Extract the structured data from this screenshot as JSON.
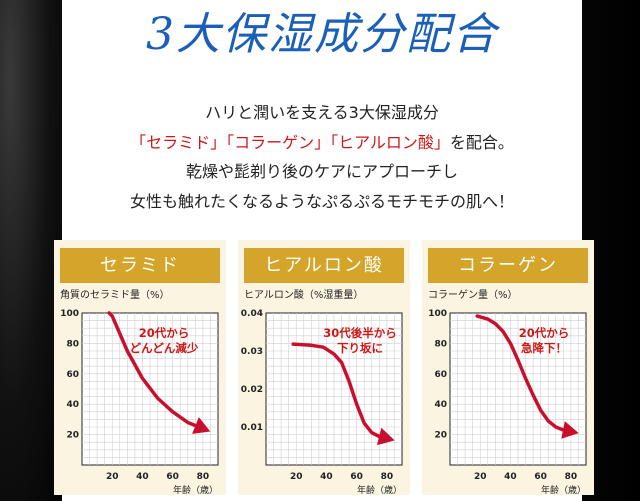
{
  "title": "3大保湿成分配合",
  "intro": {
    "line1": "ハリと潤いを支える3大保湿成分",
    "line2_red": "「セラミド」「コラーゲン」「ヒアルロン酸」",
    "line2_tail": "を配合。",
    "line3": "乾燥や髭剃り後のケアにアプローチし",
    "line4": "女性も触れたくなるようなぷるぷるモチモチの肌へ！"
  },
  "colors": {
    "title": "#1a5fb8",
    "accent": "#cc1a1a",
    "header": "#d4a52a",
    "panel": "#fbf4e1"
  },
  "chart_data": [
    {
      "type": "line",
      "header": "セラミド",
      "ylabel": "角質のセラミド量（%）",
      "xlabel": "年齢（歳）",
      "callout": [
        "20代から",
        "どんどん減少"
      ],
      "xlim": [
        0,
        90
      ],
      "ylim": [
        0,
        100
      ],
      "xticks": [
        20,
        40,
        60,
        80
      ],
      "yticks": [
        20,
        40,
        60,
        80,
        100
      ],
      "ytick_labels": [
        "20",
        "40",
        "60",
        "80",
        "100"
      ],
      "x": [
        18,
        20,
        30,
        40,
        50,
        60,
        70,
        80
      ],
      "y": [
        100,
        98,
        75,
        57,
        44,
        35,
        28,
        24
      ]
    },
    {
      "type": "line",
      "header": "ヒアルロン酸",
      "ylabel": "ヒアルロン酸（%湿重量）",
      "xlabel": "年齢（歳）",
      "callout": [
        "30代後半から",
        "下り坂に"
      ],
      "xlim": [
        0,
        90
      ],
      "ylim": [
        0,
        0.04
      ],
      "xticks": [
        20,
        40,
        60,
        80
      ],
      "yticks": [
        0.01,
        0.02,
        0.03,
        0.04
      ],
      "ytick_labels": [
        "0.01",
        "0.02",
        "0.03",
        "0.04"
      ],
      "x": [
        18,
        30,
        38,
        45,
        50,
        55,
        60,
        65,
        70,
        75,
        80
      ],
      "y": [
        0.0318,
        0.0315,
        0.031,
        0.0292,
        0.027,
        0.022,
        0.016,
        0.011,
        0.0085,
        0.0075,
        0.007
      ]
    },
    {
      "type": "line",
      "header": "コラーゲン",
      "ylabel": "コラーゲン量（%）",
      "xlabel": "年齢（歳）",
      "callout": [
        "20代から",
        "急降下！"
      ],
      "xlim": [
        0,
        90
      ],
      "ylim": [
        0,
        100
      ],
      "xticks": [
        20,
        40,
        60,
        80
      ],
      "yticks": [
        20,
        40,
        60,
        80,
        100
      ],
      "ytick_labels": [
        "20",
        "40",
        "60",
        "80",
        "100"
      ],
      "x": [
        18,
        25,
        30,
        35,
        40,
        45,
        50,
        55,
        60,
        65,
        70,
        75,
        80
      ],
      "y": [
        98,
        96,
        93,
        88,
        80,
        69,
        57,
        46,
        36,
        29,
        25,
        23,
        22
      ]
    }
  ]
}
